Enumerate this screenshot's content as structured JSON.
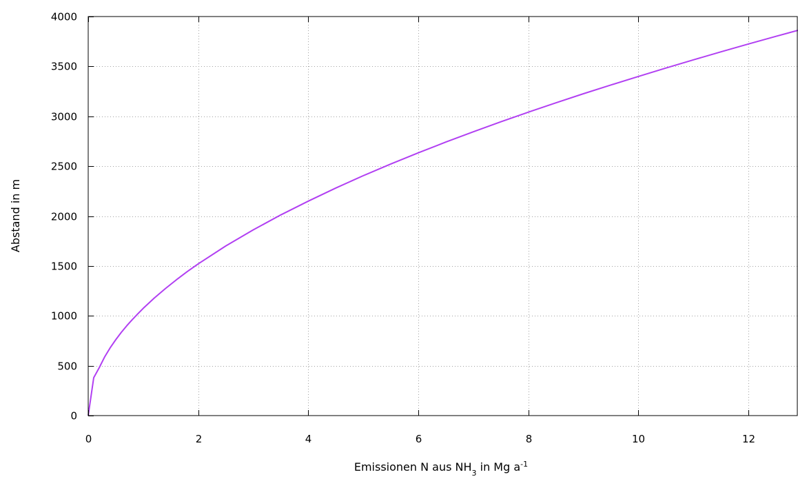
{
  "chart_data": {
    "type": "line",
    "title": "",
    "xlabel": {
      "text": "Emissionen N aus NH",
      "sub": "3",
      "mid": " in Mg a",
      "sup": "-1"
    },
    "ylabel": "Abstand in m",
    "xlim": [
      0,
      12.9
    ],
    "ylim": [
      0,
      4000
    ],
    "xticks": [
      0,
      2,
      4,
      6,
      8,
      10,
      12
    ],
    "yticks": [
      0,
      500,
      1000,
      1500,
      2000,
      2500,
      3000,
      3500,
      4000
    ],
    "grid": true,
    "legend": "none",
    "line_color": "#b13ff2",
    "series": [
      {
        "x": [
          0,
          0.1,
          0.2,
          0.3,
          0.4,
          0.5,
          0.6,
          0.7,
          0.8,
          0.9,
          1.0,
          1.2,
          1.4,
          1.6,
          1.8,
          2.0,
          2.5,
          3.0,
          3.5,
          4.0,
          4.5,
          5.0,
          5.5,
          6.0,
          6.5,
          7.0,
          7.5,
          8.0,
          8.5,
          9.0,
          9.5,
          10.0,
          10.5,
          11.0,
          11.5,
          12.0,
          12.5,
          12.9
        ],
        "y": [
          0,
          380,
          480,
          590,
          680,
          760,
          833,
          900,
          962,
          1020,
          1075,
          1178,
          1272,
          1360,
          1443,
          1521,
          1700,
          1862,
          2012,
          2150,
          2281,
          2405,
          2522,
          2634,
          2742,
          2845,
          2945,
          3042,
          3135,
          3226,
          3314,
          3400,
          3484,
          3566,
          3646,
          3725,
          3802,
          3862
        ]
      }
    ]
  }
}
